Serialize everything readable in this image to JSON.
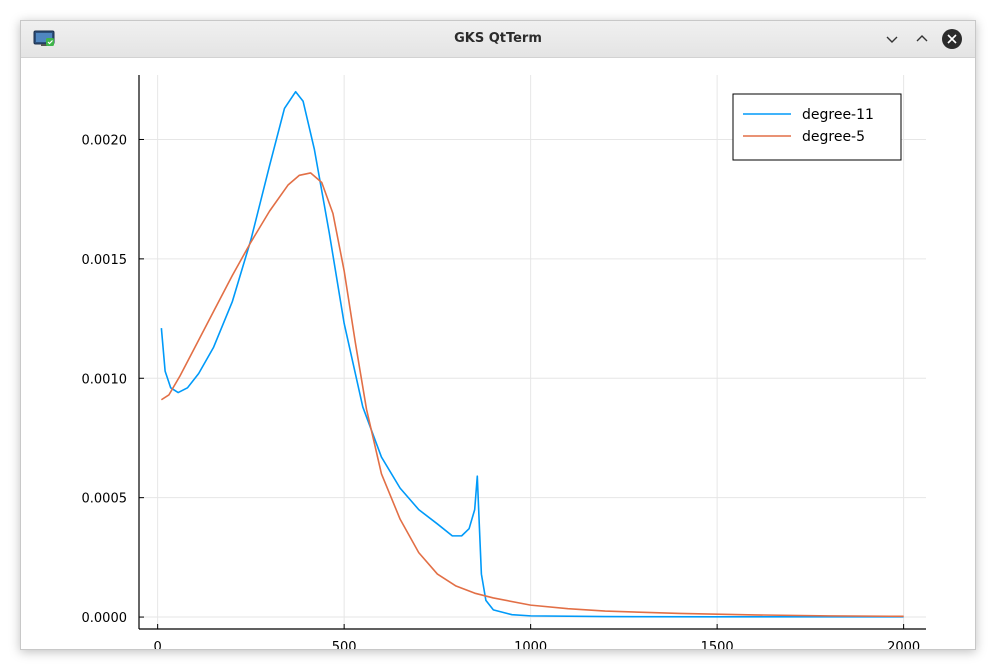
{
  "window": {
    "title": "GKS QtTerm",
    "icon": "monitor-icon",
    "controls": [
      "chevron-down-icon",
      "chevron-up-icon",
      "close-icon"
    ]
  },
  "chart_data": {
    "type": "line",
    "title": "",
    "xlabel": "",
    "ylabel": "",
    "xlim": [
      -50,
      2060
    ],
    "ylim": [
      -5e-05,
      0.00227
    ],
    "x_ticks": [
      0,
      500,
      1000,
      1500,
      2000
    ],
    "x_tick_labels": [
      "0",
      "500",
      "1000",
      "1500",
      "2000"
    ],
    "y_ticks": [
      0,
      0.0005,
      0.001,
      0.0015,
      0.002
    ],
    "y_tick_labels": [
      "0.0000",
      "0.0005",
      "0.0010",
      "0.0015",
      "0.0020"
    ],
    "grid": true,
    "legend_position": "top-right",
    "series": [
      {
        "name": "degree-11",
        "color": "#009AF9",
        "points": [
          [
            10,
            0.00121
          ],
          [
            20,
            0.00103
          ],
          [
            35,
            0.00096
          ],
          [
            55,
            0.00094
          ],
          [
            80,
            0.00096
          ],
          [
            110,
            0.00102
          ],
          [
            150,
            0.00113
          ],
          [
            200,
            0.00132
          ],
          [
            250,
            0.00158
          ],
          [
            300,
            0.00189
          ],
          [
            340,
            0.00213
          ],
          [
            370,
            0.0022
          ],
          [
            390,
            0.00216
          ],
          [
            420,
            0.00196
          ],
          [
            460,
            0.00161
          ],
          [
            500,
            0.00123
          ],
          [
            550,
            0.00088
          ],
          [
            600,
            0.00067
          ],
          [
            650,
            0.00054
          ],
          [
            700,
            0.00045
          ],
          [
            750,
            0.00039
          ],
          [
            790,
            0.00034
          ],
          [
            815,
            0.00034
          ],
          [
            835,
            0.00037
          ],
          [
            850,
            0.00045
          ],
          [
            857,
            0.00059
          ],
          [
            862,
            0.0004
          ],
          [
            868,
            0.00018
          ],
          [
            880,
            7e-05
          ],
          [
            900,
            3e-05
          ],
          [
            950,
            1e-05
          ],
          [
            1000,
            5e-06
          ],
          [
            1200,
            2e-06
          ],
          [
            1500,
            1e-06
          ],
          [
            2000,
            1e-06
          ]
        ]
      },
      {
        "name": "degree-5",
        "color": "#E26F46",
        "points": [
          [
            10,
            0.00091
          ],
          [
            30,
            0.00093
          ],
          [
            60,
            0.00101
          ],
          [
            100,
            0.00113
          ],
          [
            150,
            0.00128
          ],
          [
            200,
            0.00143
          ],
          [
            250,
            0.00157
          ],
          [
            300,
            0.0017
          ],
          [
            350,
            0.00181
          ],
          [
            380,
            0.00185
          ],
          [
            410,
            0.00186
          ],
          [
            440,
            0.00182
          ],
          [
            470,
            0.00169
          ],
          [
            500,
            0.00145
          ],
          [
            530,
            0.00115
          ],
          [
            560,
            0.00087
          ],
          [
            600,
            0.0006
          ],
          [
            650,
            0.00041
          ],
          [
            700,
            0.00027
          ],
          [
            750,
            0.00018
          ],
          [
            800,
            0.00013
          ],
          [
            850,
            0.0001
          ],
          [
            900,
            8e-05
          ],
          [
            1000,
            5e-05
          ],
          [
            1100,
            3.5e-05
          ],
          [
            1200,
            2.5e-05
          ],
          [
            1400,
            1.5e-05
          ],
          [
            1600,
            9e-06
          ],
          [
            1800,
            5e-06
          ],
          [
            2000,
            3e-06
          ]
        ]
      }
    ]
  }
}
